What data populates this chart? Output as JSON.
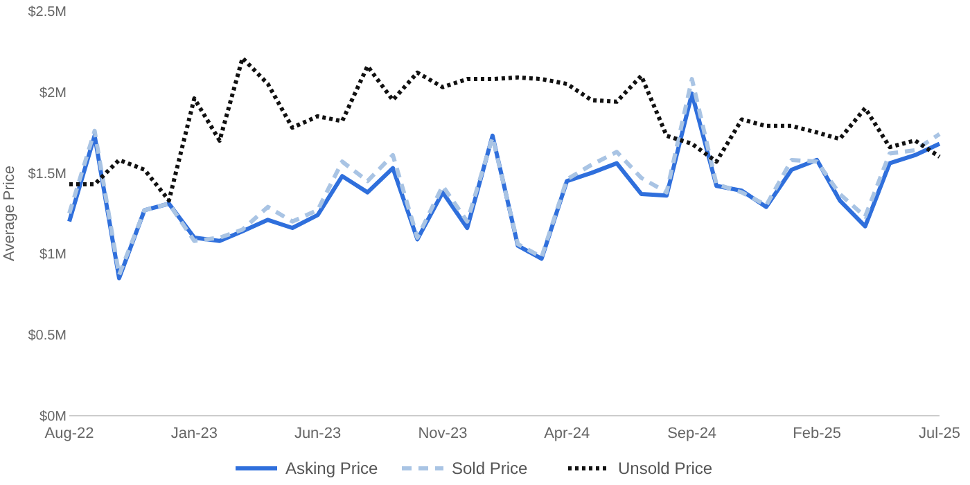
{
  "chart_data": {
    "type": "line",
    "ylabel": "Average Price",
    "x": [
      "2022-08",
      "2022-09",
      "2022-10",
      "2022-11",
      "2022-12",
      "2023-01",
      "2023-02",
      "2023-03",
      "2023-04",
      "2023-05",
      "2023-06",
      "2023-07",
      "2023-08",
      "2023-09",
      "2023-10",
      "2023-11",
      "2023-12",
      "2024-01",
      "2024-02",
      "2024-03",
      "2024-04",
      "2024-05",
      "2024-06",
      "2024-07",
      "2024-08",
      "2024-09",
      "2024-10",
      "2024-11",
      "2024-12",
      "2025-01",
      "2025-02",
      "2025-03",
      "2025-04",
      "2025-05",
      "2025-06",
      "2025-07"
    ],
    "series": [
      {
        "name": "Asking Price",
        "color": "#2f6fdc",
        "line_style": "solid",
        "values": [
          1.2,
          1.73,
          0.85,
          1.27,
          1.31,
          1.1,
          1.08,
          1.14,
          1.21,
          1.16,
          1.24,
          1.48,
          1.38,
          1.53,
          1.09,
          1.38,
          1.16,
          1.73,
          1.05,
          0.97,
          1.45,
          1.5,
          1.56,
          1.37,
          1.36,
          1.99,
          1.42,
          1.39,
          1.29,
          1.52,
          1.58,
          1.33,
          1.17,
          1.56,
          1.61,
          1.68
        ]
      },
      {
        "name": "Sold Price",
        "color": "#a9c4e4",
        "line_style": "dashed",
        "values": [
          1.25,
          1.76,
          0.87,
          1.27,
          1.31,
          1.08,
          1.1,
          1.15,
          1.29,
          1.2,
          1.27,
          1.57,
          1.45,
          1.61,
          1.1,
          1.42,
          1.2,
          1.72,
          1.06,
          0.98,
          1.46,
          1.55,
          1.63,
          1.47,
          1.38,
          2.08,
          1.43,
          1.38,
          1.3,
          1.58,
          1.57,
          1.37,
          1.23,
          1.62,
          1.64,
          1.74
        ]
      },
      {
        "name": "Unsold Price",
        "color": "#111111",
        "line_style": "dotted",
        "values": [
          1.43,
          1.43,
          1.58,
          1.52,
          1.33,
          1.96,
          1.7,
          2.21,
          2.05,
          1.78,
          1.85,
          1.82,
          2.16,
          1.95,
          2.12,
          2.03,
          2.08,
          2.08,
          2.09,
          2.08,
          2.05,
          1.95,
          1.94,
          2.1,
          1.73,
          1.68,
          1.57,
          1.83,
          1.79,
          1.79,
          1.75,
          1.71,
          1.9,
          1.66,
          1.7,
          1.6
        ]
      }
    ],
    "xlim": [
      "2022-08",
      "2025-07"
    ],
    "xticks": [
      {
        "value": "2022-08",
        "label": "Aug-22"
      },
      {
        "value": "2023-01",
        "label": "Jan-23"
      },
      {
        "value": "2023-06",
        "label": "Jun-23"
      },
      {
        "value": "2023-11",
        "label": "Nov-23"
      },
      {
        "value": "2024-04",
        "label": "Apr-24"
      },
      {
        "value": "2024-09",
        "label": "Sep-24"
      },
      {
        "value": "2025-02",
        "label": "Feb-25"
      },
      {
        "value": "2025-07",
        "label": "Jul-25"
      }
    ],
    "ylim": [
      0,
      2.5
    ],
    "yticks": [
      {
        "value": 0,
        "label": "$0M"
      },
      {
        "value": 0.5,
        "label": "$0.5M"
      },
      {
        "value": 1,
        "label": "$1M"
      },
      {
        "value": 1.5,
        "label": "$1.5M"
      },
      {
        "value": 2,
        "label": "$2M"
      },
      {
        "value": 2.5,
        "label": "$2.5M"
      }
    ],
    "grid": false,
    "legend": "bottom",
    "marker": "none"
  }
}
